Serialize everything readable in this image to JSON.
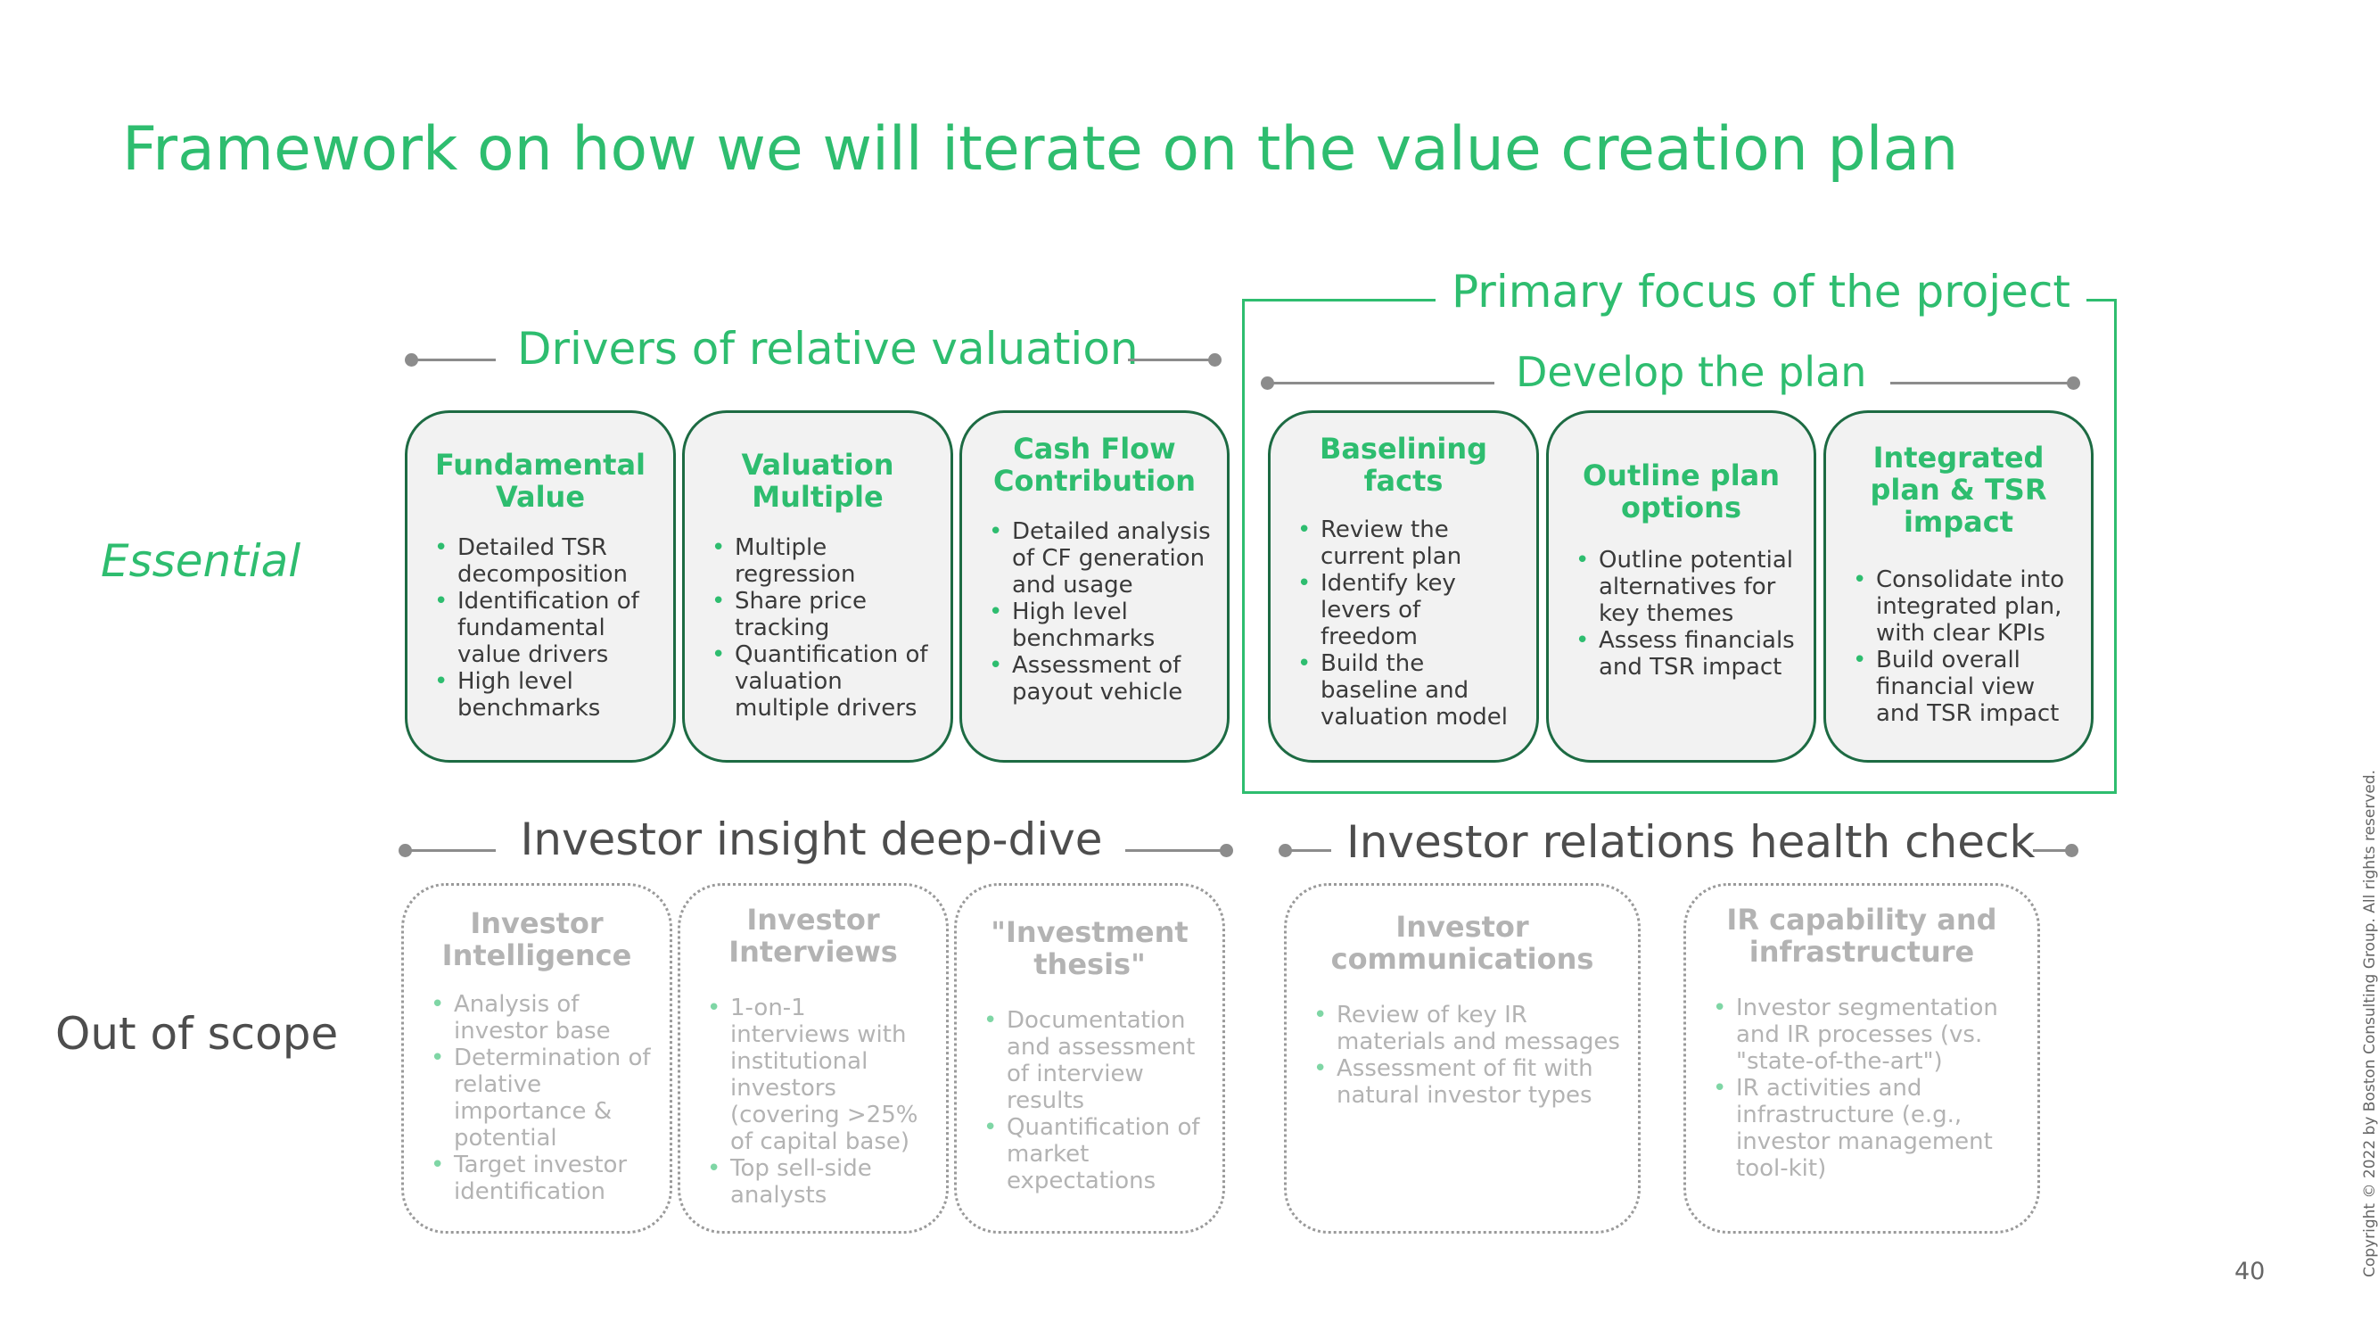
{
  "title": "Framework on how we will iterate on the value creation plan",
  "row_labels": {
    "essential": "Essential",
    "out_of_scope": "Out of scope"
  },
  "focus": {
    "title": "Primary focus of the project"
  },
  "group_headers": {
    "drivers": "Drivers of relative valuation",
    "develop": "Develop the plan",
    "investor_insight": "Investor insight deep-dive",
    "ir_health": "Investor relations health check"
  },
  "essential_cards": [
    {
      "title": "Fundamental Value",
      "bullets": [
        "Detailed TSR decomposition",
        "Identification of fundamental value drivers",
        "High level benchmarks"
      ]
    },
    {
      "title": "Valuation Multiple",
      "bullets": [
        "Multiple regression",
        "Share price tracking",
        "Quantification of valuation multiple drivers"
      ]
    },
    {
      "title": "Cash Flow Contribution",
      "bullets": [
        "Detailed analysis of CF generation and usage",
        "High level benchmarks",
        "Assessment of payout vehicle"
      ]
    },
    {
      "title": "Baselining facts",
      "bullets": [
        "Review the current plan",
        "Identify key levers of freedom",
        "Build the baseline and valuation model"
      ]
    },
    {
      "title": "Outline plan options",
      "bullets": [
        "Outline potential alternatives for key themes",
        "Assess financials and TSR impact"
      ]
    },
    {
      "title": "Integrated plan & TSR impact",
      "bullets": [
        "Consolidate into integrated plan, with clear KPIs",
        "Build overall financial view and TSR impact"
      ]
    }
  ],
  "oos_cards": [
    {
      "title": "Investor Intelligence",
      "bullets": [
        "Analysis of investor base",
        "Determination of relative importance & potential",
        "Target investor identification"
      ]
    },
    {
      "title": "Investor Interviews",
      "bullets": [
        "1-on-1 interviews with institutional investors (covering >25% of capital base)",
        "Top sell-side analysts"
      ]
    },
    {
      "title": "\"Investment thesis\"",
      "bullets": [
        "Documentation and assessment of interview results",
        "Quantification of market expectations"
      ]
    },
    {
      "title": "Investor communications",
      "bullets": [
        "Review of key IR materials and messages",
        "Assessment of fit with natural investor types"
      ]
    },
    {
      "title": "IR capability and infrastructure",
      "bullets": [
        "Investor segmentation and IR processes  (vs. \"state-of-the-art\")",
        "IR activities and infrastructure (e.g., investor management tool-kit)"
      ]
    }
  ],
  "footer": {
    "page_number": "40",
    "copyright": "Copyright © 2022 by Boston Consulting Group. All rights reserved."
  },
  "colors": {
    "accent_green": "#2ebd6f",
    "dark_green_border": "#1d6b43",
    "gray_text": "#4d4d4d",
    "muted_text": "#b3b3b3"
  }
}
